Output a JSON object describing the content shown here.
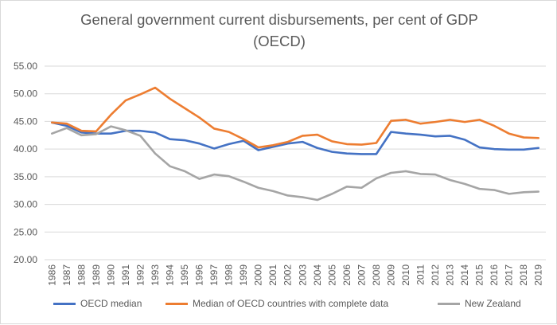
{
  "chart_data": {
    "type": "line",
    "title": "General government current disbursements, per cent of GDP (OECD)",
    "title_lines": [
      "General government current disbursements, per cent of GDP",
      "(OECD)"
    ],
    "xlabel": "",
    "ylabel": "",
    "ylim": [
      20,
      55
    ],
    "ytick_step": 5,
    "ytick_labels": [
      "20.00",
      "25.00",
      "30.00",
      "35.00",
      "40.00",
      "45.00",
      "50.00",
      "55.00"
    ],
    "grid": true,
    "legend_position": "bottom",
    "categories": [
      "1986",
      "1987",
      "1988",
      "1989",
      "1990",
      "1991",
      "1992",
      "1993",
      "1994",
      "1995",
      "1996",
      "1997",
      "1998",
      "1999",
      "2000",
      "2001",
      "2002",
      "2003",
      "2004",
      "2005",
      "2006",
      "2007",
      "2008",
      "2009",
      "2010",
      "2011",
      "2012",
      "2013",
      "2014",
      "2015",
      "2016",
      "2017",
      "2018",
      "2019"
    ],
    "series": [
      {
        "name": "OECD median",
        "color": "#4472c4",
        "values": [
          44.8,
          44.2,
          43.0,
          42.8,
          42.8,
          43.3,
          43.3,
          43.0,
          41.8,
          41.6,
          41.0,
          40.1,
          40.9,
          41.5,
          39.8,
          40.4,
          41.0,
          41.3,
          40.2,
          39.5,
          39.2,
          39.1,
          39.1,
          43.1,
          42.8,
          42.6,
          42.3,
          42.4,
          41.7,
          40.3,
          40.0,
          39.9,
          39.9,
          40.2
        ]
      },
      {
        "name": "Median of OECD countries with complete data",
        "color": "#ed7d31",
        "values": [
          44.8,
          44.6,
          43.3,
          43.2,
          46.2,
          48.8,
          49.9,
          51.1,
          49.1,
          47.4,
          45.7,
          43.7,
          43.1,
          41.8,
          40.3,
          40.7,
          41.3,
          42.4,
          42.6,
          41.4,
          40.9,
          40.8,
          41.1,
          45.1,
          45.3,
          44.6,
          44.9,
          45.3,
          44.9,
          45.3,
          44.2,
          42.8,
          42.1,
          42.0
        ]
      },
      {
        "name": "New Zealand",
        "color": "#a5a5a5",
        "values": [
          42.8,
          43.8,
          42.5,
          42.7,
          44.1,
          43.4,
          42.4,
          39.2,
          36.9,
          36.0,
          34.6,
          35.4,
          35.1,
          34.1,
          33.0,
          32.4,
          31.6,
          31.3,
          30.8,
          31.9,
          33.2,
          33.0,
          34.7,
          35.7,
          36.0,
          35.5,
          35.4,
          34.4,
          33.7,
          32.8,
          32.6,
          31.9,
          32.2,
          32.3
        ]
      }
    ]
  }
}
